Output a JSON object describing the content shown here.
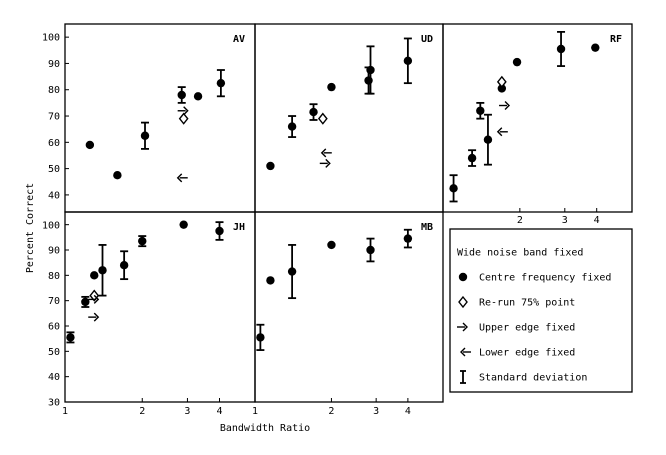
{
  "chart_data": {
    "type": "scatter",
    "xlabel": "Bandwidth Ratio",
    "ylabel": "Percent Correct",
    "x_scale": "log",
    "xlim": [
      1,
      5.5
    ],
    "ylim": [
      30,
      105
    ],
    "x_ticks": [
      "1",
      "2",
      "3",
      "4"
    ],
    "y_ticks": [
      "30",
      "40",
      "50",
      "60",
      "70",
      "80",
      "90",
      "100"
    ],
    "legend": {
      "placement": "right",
      "entries": [
        {
          "key": "title",
          "label": "Wide noise band fixed"
        },
        {
          "key": "centre",
          "label": "Centre frequency fixed"
        },
        {
          "key": "rerun",
          "label": "Re-run 75% point"
        },
        {
          "key": "upper",
          "label": "Upper edge fixed"
        },
        {
          "key": "lower",
          "label": "Lower edge fixed"
        },
        {
          "key": "sd",
          "label": "Standard deviation"
        }
      ]
    },
    "panels": [
      {
        "label": "AV",
        "centre": [
          [
            1.25,
            59
          ],
          [
            1.6,
            47.5
          ],
          [
            2.05,
            62.5,
            5
          ],
          [
            2.85,
            78,
            3
          ],
          [
            3.3,
            77.5
          ],
          [
            4.05,
            82.5,
            5
          ]
        ],
        "rerun": [
          [
            2.9,
            69
          ]
        ],
        "upper": [
          [
            2.9,
            72
          ]
        ],
        "lower": [
          [
            2.85,
            46.5
          ]
        ]
      },
      {
        "label": "UD",
        "centre": [
          [
            1.15,
            51
          ],
          [
            1.4,
            66,
            4
          ],
          [
            1.7,
            71.5,
            3
          ],
          [
            2.0,
            81
          ],
          [
            2.8,
            83.5,
            5
          ],
          [
            2.85,
            87.5,
            9
          ],
          [
            4.0,
            91,
            8.5
          ]
        ],
        "rerun": [
          [
            1.85,
            69
          ]
        ],
        "upper": [
          [
            1.9,
            52
          ]
        ],
        "lower": [
          [
            1.9,
            56
          ]
        ]
      },
      {
        "label": "RF",
        "centre": [
          [
            1.1,
            42.5,
            5
          ],
          [
            1.3,
            54,
            3
          ],
          [
            1.4,
            72,
            3
          ],
          [
            1.5,
            61,
            9.5
          ],
          [
            1.7,
            80.5
          ],
          [
            1.95,
            90.5
          ],
          [
            2.9,
            95.5,
            6.5
          ],
          [
            3.95,
            96
          ]
        ],
        "rerun": [
          [
            1.7,
            83
          ]
        ],
        "upper": [
          [
            1.75,
            74
          ]
        ],
        "lower": [
          [
            1.7,
            64
          ]
        ]
      },
      {
        "label": "JH",
        "centre": [
          [
            1.05,
            55.5,
            2
          ],
          [
            1.2,
            69.5,
            2
          ],
          [
            1.3,
            80
          ],
          [
            1.4,
            82,
            10
          ],
          [
            1.7,
            84,
            5.5
          ],
          [
            2.0,
            93.5,
            2
          ],
          [
            2.9,
            100
          ],
          [
            4.0,
            97.5,
            3.5
          ]
        ],
        "rerun": [
          [
            1.3,
            72
          ]
        ],
        "upper": [
          [
            1.3,
            63.5
          ],
          [
            1.3,
            70.5
          ]
        ],
        "lower": []
      },
      {
        "label": "MB",
        "centre": [
          [
            1.05,
            55.5,
            5
          ],
          [
            1.15,
            78
          ],
          [
            1.4,
            81.5,
            10.5
          ],
          [
            2.0,
            92
          ],
          [
            2.85,
            90,
            4.5
          ],
          [
            4.0,
            94.5,
            3.5
          ]
        ],
        "rerun": [],
        "upper": [],
        "lower": []
      }
    ]
  }
}
